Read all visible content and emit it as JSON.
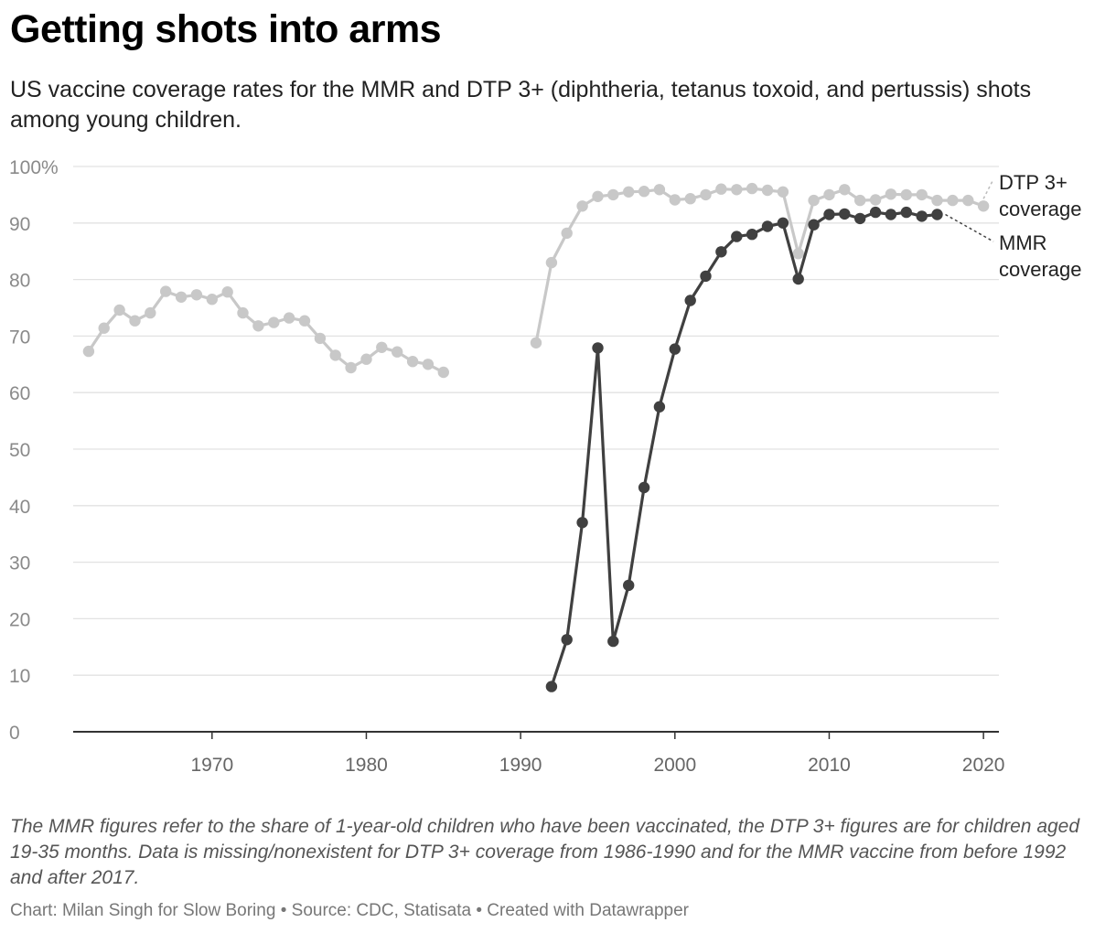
{
  "title": "Getting shots into arms",
  "subtitle": "US vaccine coverage rates for the MMR and DTP 3+ (diphtheria, tetanus toxoid, and pertussis) shots among young children.",
  "notes": "The MMR figures refer to the share of 1-year-old children who have been vaccinated, the DTP 3+ figures are for children aged 19-35 months. Data is missing/nonexistent for DTP 3+ coverage from 1986-1990 and for the MMR vaccine from before 1992 and after 2017.",
  "credit": {
    "chart": "Chart: Milan Singh for Slow Boring",
    "source": "Source: CDC, Statisata",
    "created": "Created with Datawrapper",
    "separator": " • "
  },
  "chart_data": {
    "type": "line",
    "title": "Getting shots into arms",
    "xlabel": "",
    "ylabel": "",
    "xlim": [
      1961,
      2021
    ],
    "ylim": [
      0,
      100
    ],
    "y_ticks": [
      0,
      10,
      20,
      30,
      40,
      50,
      60,
      70,
      80,
      90,
      100
    ],
    "y_tick_labels": [
      "0",
      "10",
      "20",
      "30",
      "40",
      "50",
      "60",
      "70",
      "80",
      "90",
      "100%"
    ],
    "x_ticks": [
      1970,
      1980,
      1990,
      2000,
      2010,
      2020
    ],
    "x_tick_labels": [
      "1970",
      "1980",
      "1990",
      "2000",
      "2010",
      "2020"
    ],
    "grid": true,
    "series": [
      {
        "name": "DTP 3+ coverage",
        "label_lines": [
          "DTP 3+",
          "coverage"
        ],
        "color": "#c8c8c8",
        "points": [
          [
            1962,
            67.3
          ],
          [
            1963,
            71.4
          ],
          [
            1964,
            74.6
          ],
          [
            1965,
            72.7
          ],
          [
            1966,
            74.1
          ],
          [
            1967,
            77.9
          ],
          [
            1968,
            76.9
          ],
          [
            1969,
            77.3
          ],
          [
            1970,
            76.5
          ],
          [
            1971,
            77.8
          ],
          [
            1972,
            74.1
          ],
          [
            1973,
            71.8
          ],
          [
            1974,
            72.4
          ],
          [
            1975,
            73.2
          ],
          [
            1976,
            72.7
          ],
          [
            1977,
            69.6
          ],
          [
            1978,
            66.6
          ],
          [
            1979,
            64.4
          ],
          [
            1980,
            65.9
          ],
          [
            1981,
            68.0
          ],
          [
            1982,
            67.2
          ],
          [
            1983,
            65.5
          ],
          [
            1984,
            65.0
          ],
          [
            1985,
            63.6
          ],
          null,
          [
            1991,
            68.8
          ],
          [
            1992,
            83.0
          ],
          [
            1993,
            88.2
          ],
          [
            1994,
            93.0
          ],
          [
            1995,
            94.7
          ],
          [
            1996,
            95.0
          ],
          [
            1997,
            95.5
          ],
          [
            1998,
            95.6
          ],
          [
            1999,
            95.9
          ],
          [
            2000,
            94.1
          ],
          [
            2001,
            94.3
          ],
          [
            2002,
            95.0
          ],
          [
            2003,
            96.0
          ],
          [
            2004,
            95.9
          ],
          [
            2005,
            96.1
          ],
          [
            2006,
            95.8
          ],
          [
            2007,
            95.5
          ],
          [
            2008,
            84.6
          ],
          [
            2009,
            94.0
          ],
          [
            2010,
            95.0
          ],
          [
            2011,
            95.9
          ],
          [
            2012,
            94.0
          ],
          [
            2013,
            94.1
          ],
          [
            2014,
            95.1
          ],
          [
            2015,
            95.0
          ],
          [
            2016,
            95.0
          ],
          [
            2017,
            94.0
          ],
          [
            2018,
            94.0
          ],
          [
            2019,
            94.0
          ],
          [
            2020,
            93.0
          ]
        ]
      },
      {
        "name": "MMR coverage",
        "label_lines": [
          "MMR",
          "coverage"
        ],
        "color": "#404040",
        "points": [
          [
            1992,
            8.0
          ],
          [
            1993,
            16.3
          ],
          [
            1994,
            37.0
          ],
          [
            1995,
            67.9
          ],
          [
            1996,
            16.0
          ],
          [
            1997,
            25.9
          ],
          [
            1998,
            43.2
          ],
          [
            1999,
            57.5
          ],
          [
            2000,
            67.7
          ],
          [
            2001,
            76.3
          ],
          [
            2002,
            80.6
          ],
          [
            2003,
            84.9
          ],
          [
            2004,
            87.6
          ],
          [
            2005,
            88.0
          ],
          [
            2006,
            89.4
          ],
          [
            2007,
            90.0
          ],
          [
            2008,
            80.1
          ],
          [
            2009,
            89.7
          ],
          [
            2010,
            91.5
          ],
          [
            2011,
            91.6
          ],
          [
            2012,
            90.8
          ],
          [
            2013,
            91.9
          ],
          [
            2014,
            91.5
          ],
          [
            2015,
            91.9
          ],
          [
            2016,
            91.2
          ],
          [
            2017,
            91.5
          ]
        ]
      }
    ]
  }
}
